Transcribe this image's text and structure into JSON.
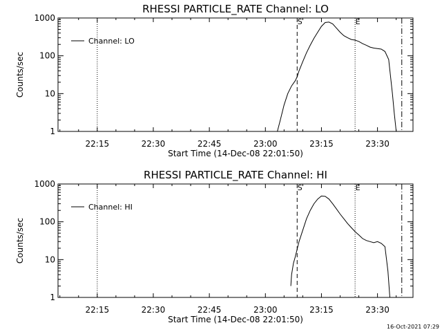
{
  "chart_data": [
    {
      "type": "line",
      "title": "RHESSI PARTICLE_RATE Channel: LO",
      "xlabel": "Start Time (14-Dec-08 22:01:50)",
      "ylabel": "Counts/sec",
      "y_scale": "log",
      "ylim": [
        1,
        1000
      ],
      "y_tick_labels": [
        "1",
        "10",
        "100",
        "1000"
      ],
      "y_ticks": [
        1,
        10,
        100,
        1000
      ],
      "x_tick_labels": [
        "22:15",
        "22:30",
        "22:45",
        "23:00",
        "23:15",
        "23:30"
      ],
      "x_ticks_min": [
        795,
        810,
        825,
        840,
        855,
        870
      ],
      "xlim_min": [
        784.5,
        879.5
      ],
      "legend": {
        "position": "top-left",
        "entries": [
          "Channel: LO"
        ]
      },
      "grid": false,
      "markers": [
        {
          "label": "",
          "x_min": 795,
          "style": "dotted"
        },
        {
          "label": "S",
          "x_min": 848.5,
          "style": "dashed"
        },
        {
          "label": "E",
          "x_min": 864,
          "style": "dotted"
        },
        {
          "label": "",
          "x_min": 876.5,
          "style": "dashdot"
        }
      ],
      "series": [
        {
          "name": "Channel: LO",
          "x_min": [
            843.2,
            844,
            845,
            846,
            847,
            848,
            848.5,
            849,
            850,
            851,
            852,
            853,
            854,
            855,
            856,
            857,
            858,
            859,
            860,
            861,
            862,
            863,
            864,
            865,
            866,
            867,
            868,
            869,
            870,
            871,
            872,
            873,
            874,
            874.5,
            875
          ],
          "values": [
            1,
            2,
            5,
            10,
            16,
            22,
            28,
            40,
            70,
            120,
            190,
            290,
            420,
            600,
            760,
            780,
            700,
            540,
            420,
            340,
            300,
            270,
            260,
            240,
            210,
            190,
            170,
            160,
            155,
            150,
            130,
            80,
            10,
            3,
            1
          ]
        }
      ]
    },
    {
      "type": "line",
      "title": "RHESSI PARTICLE_RATE Channel: HI",
      "xlabel": "Start Time (14-Dec-08 22:01:50)",
      "ylabel": "Counts/sec",
      "y_scale": "log",
      "ylim": [
        1,
        1000
      ],
      "y_tick_labels": [
        "1",
        "10",
        "100",
        "1000"
      ],
      "y_ticks": [
        1,
        10,
        100,
        1000
      ],
      "x_tick_labels": [
        "22:15",
        "22:30",
        "22:45",
        "23:00",
        "23:15",
        "23:30"
      ],
      "x_ticks_min": [
        795,
        810,
        825,
        840,
        855,
        870
      ],
      "xlim_min": [
        784.5,
        879.5
      ],
      "legend": {
        "position": "top-left",
        "entries": [
          "Channel: HI"
        ]
      },
      "grid": false,
      "markers": [
        {
          "label": "",
          "x_min": 795,
          "style": "dotted"
        },
        {
          "label": "S",
          "x_min": 848.5,
          "style": "dashed"
        },
        {
          "label": "E",
          "x_min": 864,
          "style": "dotted"
        },
        {
          "label": "",
          "x_min": 876.5,
          "style": "dashdot"
        }
      ],
      "series": [
        {
          "name": "Channel: HI",
          "x_min": [
            846.8,
            847,
            847.5,
            848,
            849,
            850,
            851,
            852,
            853,
            854,
            855,
            856,
            857,
            858,
            859,
            860,
            861,
            862,
            863,
            864,
            865,
            866,
            867,
            868,
            869,
            870,
            871,
            872,
            872.8,
            873.3
          ],
          "values": [
            2,
            4,
            8,
            12,
            30,
            60,
            120,
            200,
            300,
            400,
            480,
            470,
            400,
            300,
            220,
            160,
            120,
            90,
            70,
            55,
            45,
            36,
            32,
            30,
            28,
            30,
            27,
            22,
            5,
            1
          ]
        }
      ]
    }
  ],
  "footer": {
    "timestamp": "16-Oct-2021 07:29"
  }
}
